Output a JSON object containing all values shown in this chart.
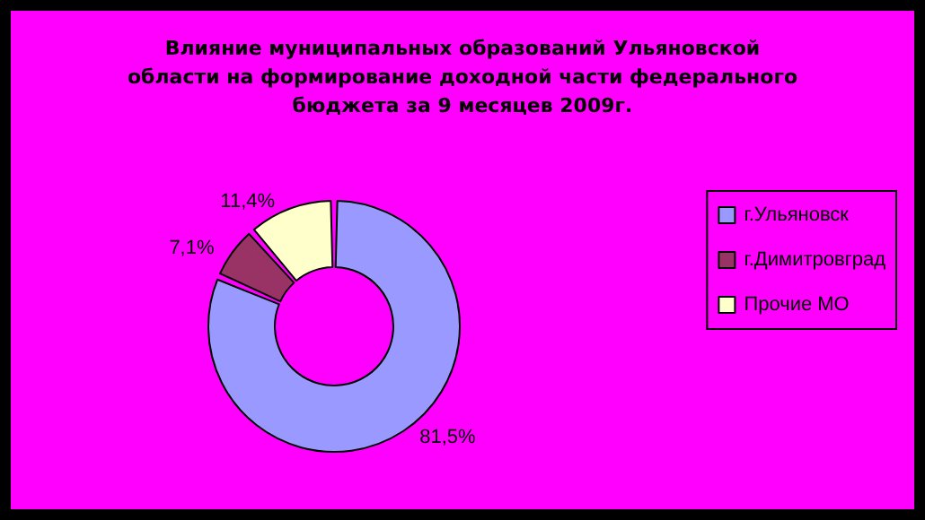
{
  "chart_data": {
    "type": "donut",
    "title": "Влияние муниципальных образований Ульяновской\nобласти на формирование доходной части федерального\nбюджета за 9 месяцев 2009г.",
    "categories": [
      "г.Ульяновск",
      "г.Димитровград",
      "Прочие МО"
    ],
    "values": [
      81.5,
      7.1,
      11.4
    ],
    "colors": [
      "#9999ff",
      "#993366",
      "#ffffcc"
    ],
    "value_labels": [
      "81,5%",
      "7,1%",
      "11,4%"
    ],
    "legend": "right"
  }
}
